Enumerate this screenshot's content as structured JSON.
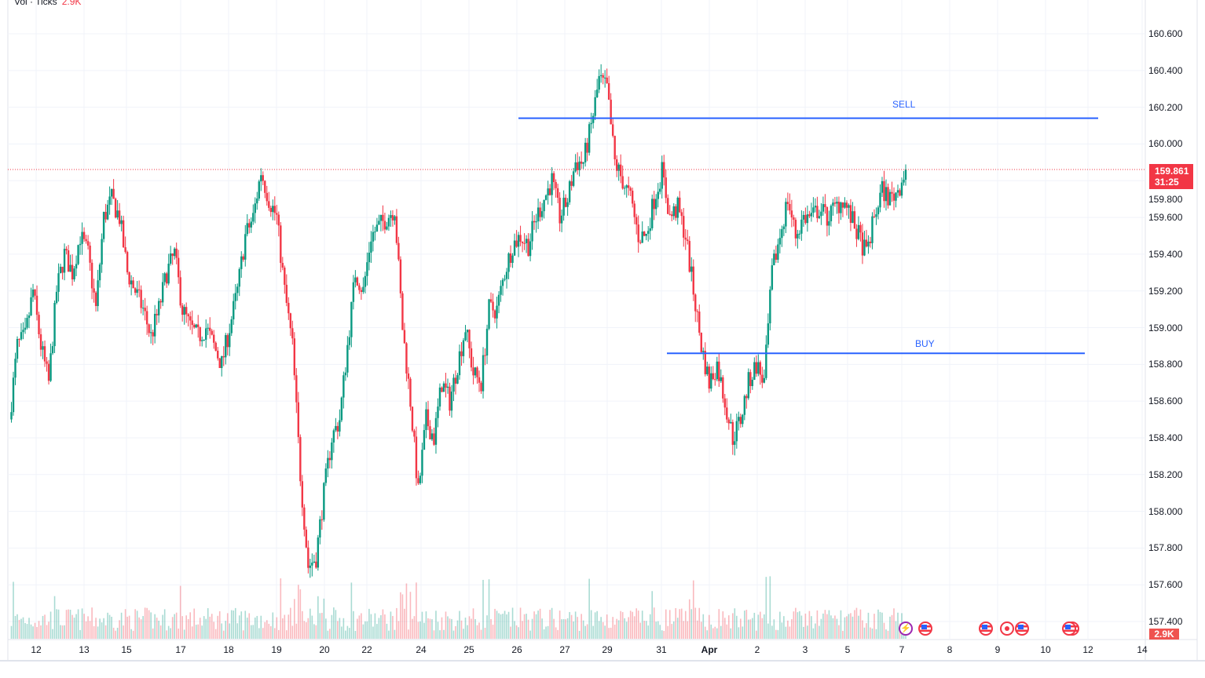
{
  "legend": {
    "label": "Vol · Ticks",
    "value": "2.9K"
  },
  "chart_data": {
    "type": "candlestick",
    "symbol_interval_hidden": true,
    "price_axis": [
      "160.600",
      "160.400",
      "160.200",
      "160.000",
      "159.800",
      "159.600",
      "159.400",
      "159.200",
      "159.000",
      "158.800",
      "158.600",
      "158.400",
      "158.200",
      "158.000",
      "157.800",
      "157.600",
      "157.400"
    ],
    "ylim": [
      157.3,
      160.75
    ],
    "time_axis": [
      "12",
      "13",
      "15",
      "17",
      "18",
      "19",
      "20",
      "22",
      "24",
      "25",
      "26",
      "27",
      "29",
      "31",
      "Apr",
      "2",
      "3",
      "5",
      "7",
      "8",
      "9",
      "10",
      "12",
      "14"
    ],
    "closes": [
      158.5,
      158.9,
      158.95,
      159.2,
      158.9,
      158.7,
      159.2,
      159.4,
      159.3,
      159.5,
      159.4,
      159.1,
      159.6,
      159.7,
      159.6,
      159.3,
      159.2,
      159.1,
      158.95,
      159.1,
      159.3,
      159.4,
      159.1,
      159.0,
      158.95,
      159.0,
      158.9,
      158.8,
      159.0,
      159.2,
      159.5,
      159.6,
      159.85,
      159.7,
      159.6,
      159.2,
      158.9,
      158.2,
      157.7,
      157.75,
      158.1,
      158.4,
      158.5,
      158.9,
      159.3,
      159.2,
      159.5,
      159.55,
      159.6,
      159.65,
      159.0,
      158.6,
      158.1,
      158.5,
      158.4,
      158.7,
      158.6,
      158.8,
      159.0,
      158.75,
      158.7,
      159.1,
      159.1,
      159.3,
      159.45,
      159.5,
      159.45,
      159.6,
      159.7,
      159.8,
      159.6,
      159.7,
      159.9,
      159.9,
      160.1,
      160.35,
      160.3,
      159.9,
      159.8,
      159.7,
      159.5,
      159.5,
      159.7,
      159.85,
      159.6,
      159.65,
      159.5,
      159.2,
      158.9,
      158.7,
      158.8,
      158.6,
      158.4,
      158.5,
      158.7,
      158.8,
      158.7,
      159.3,
      159.5,
      159.7,
      159.5,
      159.6,
      159.6,
      159.65,
      159.6,
      159.65,
      159.7,
      159.6,
      159.5,
      159.4,
      159.6,
      159.75,
      159.7,
      159.75,
      159.861
    ],
    "last_price": "159.861",
    "countdown": "31:25",
    "volume_last": "2.9K",
    "levels": [
      {
        "label": "SELL",
        "price": 160.14
      },
      {
        "label": "BUY",
        "price": 158.86
      }
    ],
    "colors": {
      "up": "#089981",
      "down": "#f23645",
      "level": "#2962ff",
      "grid": "#f0f3fa"
    }
  }
}
